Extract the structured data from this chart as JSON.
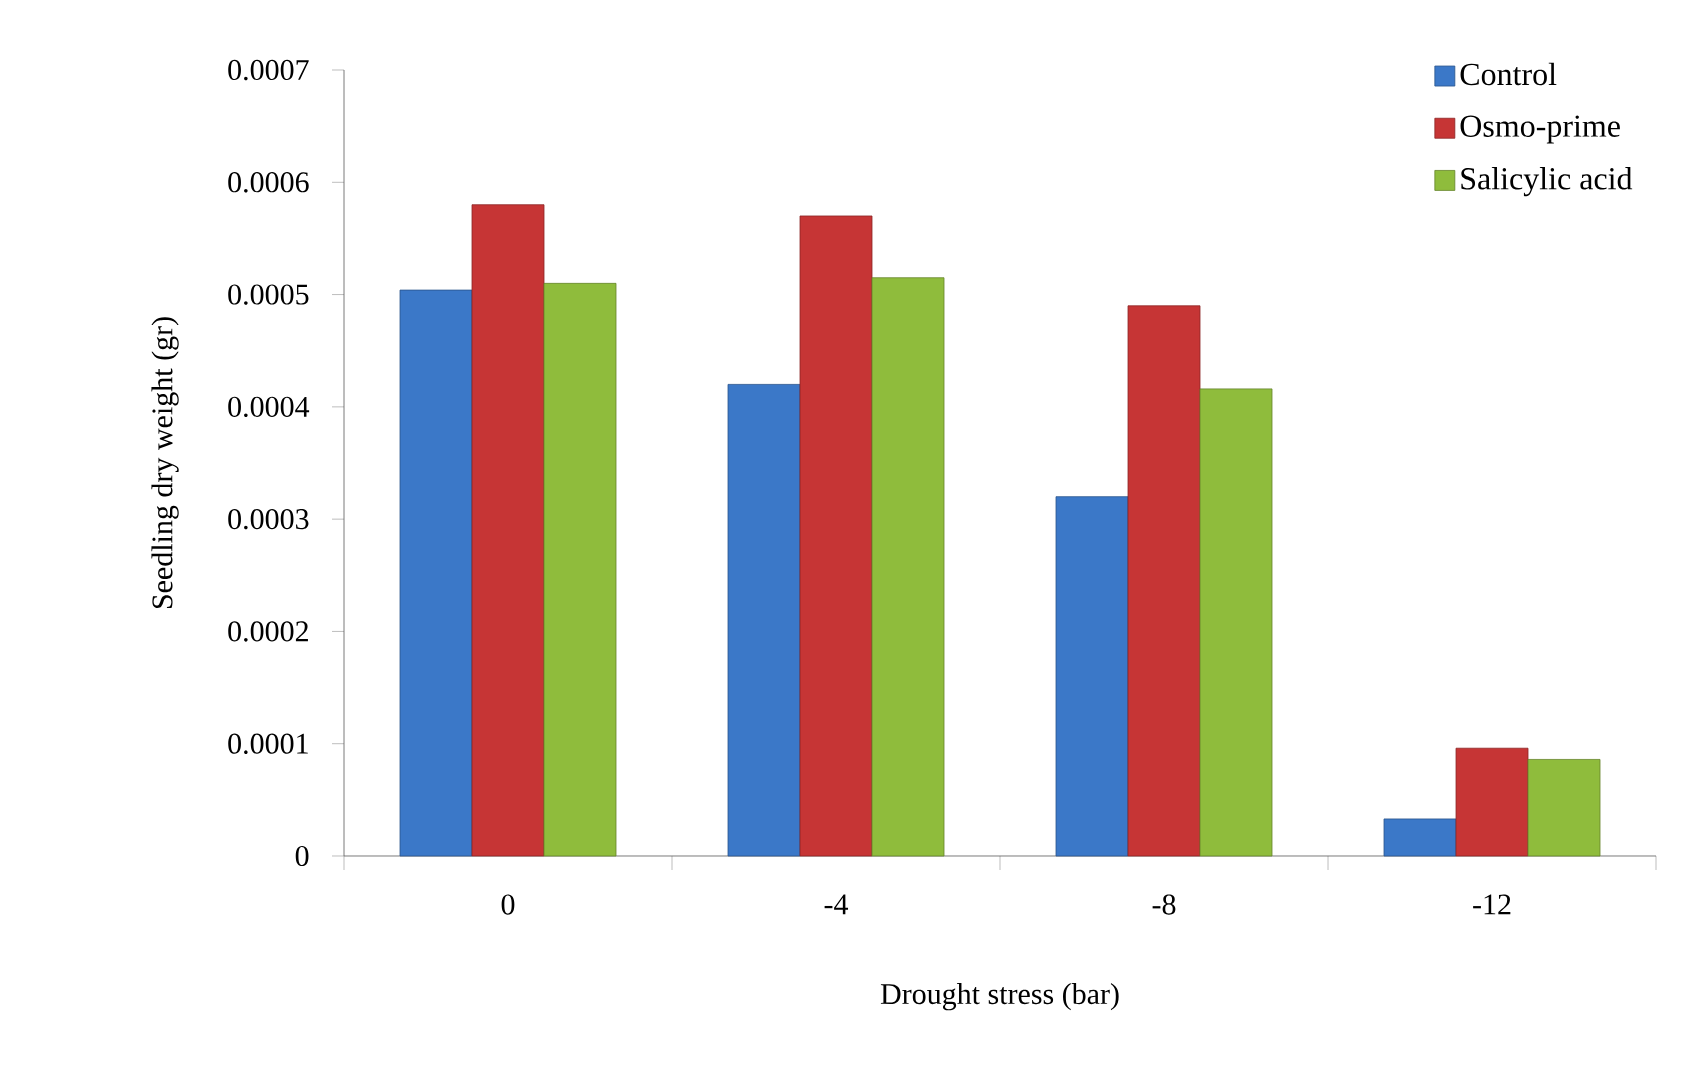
{
  "chart_data": {
    "type": "bar",
    "xlabel": "Drought stress (bar)",
    "ylabel": "Seedling dry weight (gr)",
    "categories": [
      "0",
      "-4",
      "-8",
      "-12"
    ],
    "series": [
      {
        "name": "Control",
        "color": "#3b78c8",
        "values": [
          0.000504,
          0.00042,
          0.00032,
          3.3e-05
        ]
      },
      {
        "name": "Osmo-prime",
        "color": "#c63535",
        "values": [
          0.00058,
          0.00057,
          0.00049,
          9.6e-05
        ]
      },
      {
        "name": "Salicylic acid",
        "color": "#8fbc3c",
        "values": [
          0.00051,
          0.000515,
          0.000416,
          8.6e-05
        ]
      }
    ],
    "ylim": [
      0,
      0.0007
    ],
    "yticks": [
      0,
      0.0001,
      0.0002,
      0.0003,
      0.0004,
      0.0005,
      0.0006,
      0.0007
    ],
    "grid": false,
    "legend": "top right"
  }
}
